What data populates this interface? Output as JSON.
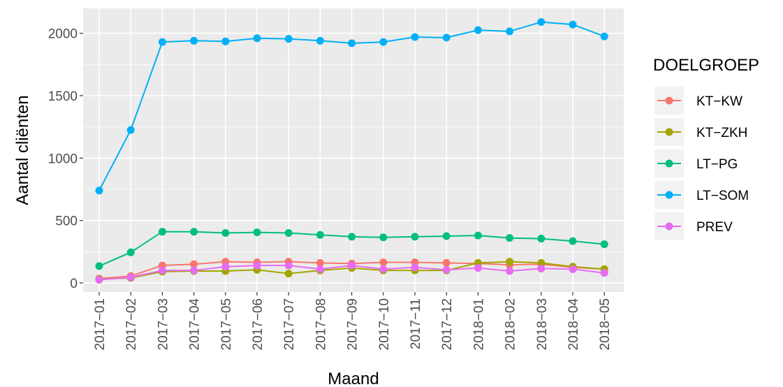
{
  "chart_data": {
    "type": "line",
    "xlabel": "Maand",
    "ylabel": "Aantal cliënten",
    "ylim": [
      0,
      2100
    ],
    "y_ticks": [
      0,
      500,
      1000,
      1500,
      2000
    ],
    "grid": true,
    "legend_title": "DOELGROEP",
    "legend_position": "right",
    "categories": [
      "2017−01",
      "2017−02",
      "2017−03",
      "2017−04",
      "2017−05",
      "2017−06",
      "2017−07",
      "2017−08",
      "2017−09",
      "2017−10",
      "2017−11",
      "2017−12",
      "2018−01",
      "2018−02",
      "2018−03",
      "2018−04",
      "2018−05"
    ],
    "series": [
      {
        "name": "KT−KW",
        "color": "#F8766D",
        "values": [
          35,
          55,
          140,
          150,
          170,
          165,
          170,
          160,
          155,
          165,
          165,
          160,
          155,
          145,
          150,
          125,
          110
        ]
      },
      {
        "name": "KT−ZKH",
        "color": "#A3A500",
        "values": [
          30,
          40,
          90,
          95,
          95,
          105,
          75,
          100,
          120,
          100,
          100,
          100,
          160,
          170,
          160,
          130,
          110
        ]
      },
      {
        "name": "LT−PG",
        "color": "#00BF7D",
        "values": [
          135,
          245,
          410,
          410,
          400,
          405,
          400,
          385,
          370,
          365,
          370,
          375,
          380,
          360,
          355,
          335,
          310
        ]
      },
      {
        "name": "LT−SOM",
        "color": "#00B0F6",
        "values": [
          740,
          1225,
          1930,
          1940,
          1935,
          1960,
          1955,
          1940,
          1920,
          1930,
          1970,
          1965,
          2025,
          2015,
          2090,
          2070,
          1975
        ]
      },
      {
        "name": "PREV",
        "color": "#E76BF3",
        "values": [
          25,
          45,
          100,
          100,
          130,
          140,
          140,
          110,
          140,
          110,
          125,
          105,
          120,
          95,
          115,
          110,
          80
        ]
      }
    ]
  }
}
